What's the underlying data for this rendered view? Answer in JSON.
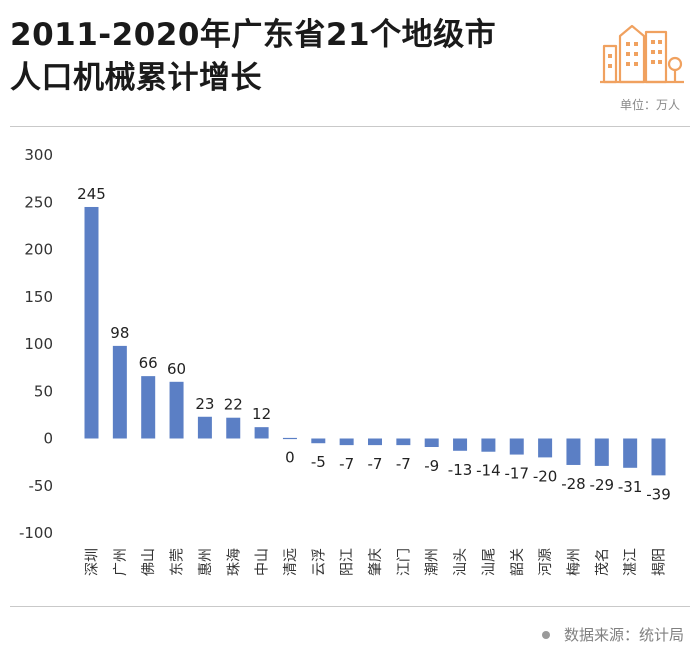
{
  "header": {
    "title_line1": "2011-2020年广东省21个地级市",
    "title_line2": "人口机械累计增长",
    "unit": "单位：万人"
  },
  "footer": {
    "source": "数据来源：统计局"
  },
  "colors": {
    "bar": "#5b7fc5",
    "logo": "#f0a15f",
    "axis_text": "#333333"
  },
  "icons": {
    "logo": "building-icon",
    "source": "dot-icon"
  },
  "chart_data": {
    "type": "bar",
    "title": "2011-2020年广东省21个地级市人口机械累计增长",
    "ylabel": "单位：万人",
    "xlabel": "",
    "ylim": [
      -100,
      300
    ],
    "yticks": [
      -100,
      -50,
      0,
      50,
      100,
      150,
      200,
      250,
      300
    ],
    "grid": false,
    "categories": [
      "深圳",
      "广州",
      "佛山",
      "东莞",
      "惠州",
      "珠海",
      "中山",
      "清远",
      "云浮",
      "阳江",
      "肇庆",
      "江门",
      "潮州",
      "汕头",
      "汕尾",
      "韶关",
      "河源",
      "梅州",
      "茂名",
      "湛江",
      "揭阳"
    ],
    "values": [
      245,
      98,
      66,
      60,
      23,
      22,
      12,
      0,
      -5,
      -7,
      -7,
      -7,
      -9,
      -13,
      -14,
      -17,
      -20,
      -28,
      -29,
      -31,
      -39
    ]
  }
}
